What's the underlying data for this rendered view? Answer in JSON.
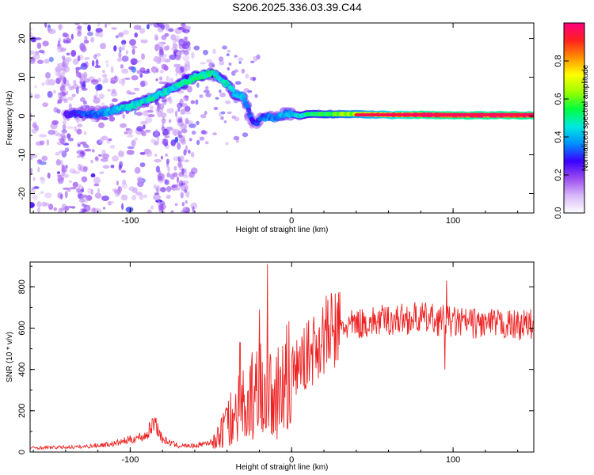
{
  "title": "S206.2025.336.03.39.C44",
  "chart_data": [
    {
      "type": "heatmap",
      "xlabel": "Height of straight line (km)",
      "ylabel": "Frequency (Hz)",
      "xlim": [
        -162,
        150
      ],
      "ylim": [
        -25,
        24
      ],
      "x_ticks": [
        -100,
        0,
        100
      ],
      "y_ticks": [
        -20,
        -10,
        0,
        10,
        20
      ],
      "colorbar": {
        "label": "Normalized spectral amplitude",
        "range": [
          0.0,
          1.0
        ],
        "ticks": [
          0.0,
          0.2,
          0.4,
          0.6,
          0.8
        ],
        "tick_labels": [
          "0.0",
          "0.2",
          "0.4",
          "0.6",
          "0.8"
        ],
        "colors": [
          "#ffffff",
          "#d8b8f8",
          "#9a4cf0",
          "#3a00ff",
          "#0090ff",
          "#00e8e0",
          "#00ff40",
          "#9cff00",
          "#ffff00",
          "#ff9000",
          "#ff2020",
          "#ff0080"
        ]
      },
      "ridge": {
        "x": [
          -140,
          -130,
          -120,
          -110,
          -100,
          -90,
          -80,
          -70,
          -60,
          -50,
          -45,
          -40,
          -35,
          -30,
          -27,
          -25,
          -22,
          -20,
          -15,
          -10,
          -5,
          0,
          5,
          10,
          20,
          40,
          60,
          80,
          100,
          120,
          150
        ],
        "y": [
          0.5,
          0.5,
          0.5,
          1.5,
          2.5,
          4,
          6,
          8,
          10,
          11,
          10,
          8,
          5.5,
          5,
          2,
          -1,
          -2,
          -1,
          0,
          -0.5,
          0.5,
          0.5,
          0,
          0.5,
          0.5,
          0.5,
          0.3,
          0.3,
          0.2,
          0.2,
          0.2
        ],
        "amplitude": [
          0.25,
          0.3,
          0.35,
          0.4,
          0.45,
          0.45,
          0.45,
          0.45,
          0.5,
          0.5,
          0.45,
          0.45,
          0.45,
          0.4,
          0.35,
          0.3,
          0.3,
          0.3,
          0.35,
          0.35,
          0.4,
          0.4,
          0.45,
          0.5,
          0.55,
          0.65,
          0.8,
          0.9,
          0.9,
          0.9,
          0.9
        ]
      }
    },
    {
      "type": "line",
      "xlabel": "Height of straight line (km)",
      "ylabel": "SNR (10 * v/v)",
      "xlim": [
        -162,
        150
      ],
      "ylim": [
        0,
        920
      ],
      "x_ticks": [
        -100,
        0,
        100
      ],
      "y_ticks": [
        0,
        200,
        400,
        600,
        800
      ],
      "color": "#ee2222",
      "envelope": {
        "x": [
          -162,
          -130,
          -110,
          -95,
          -90,
          -85,
          -80,
          -70,
          -60,
          -50,
          -45,
          -40,
          -35,
          -30,
          -25,
          -20,
          -15,
          -10,
          0,
          10,
          20,
          30,
          40,
          60,
          80,
          100,
          120,
          140,
          150
        ],
        "y": [
          20,
          25,
          40,
          70,
          80,
          150,
          60,
          30,
          30,
          50,
          80,
          140,
          220,
          250,
          280,
          320,
          350,
          300,
          380,
          470,
          560,
          600,
          620,
          640,
          650,
          630,
          620,
          615,
          620
        ]
      },
      "peaks": [
        {
          "x": -84,
          "y": 165
        },
        {
          "x": -32,
          "y": 530
        },
        {
          "x": -20,
          "y": 690
        },
        {
          "x": -15,
          "y": 910
        },
        {
          "x": 96,
          "y": 830
        },
        {
          "x": 95,
          "y": 400
        }
      ]
    }
  ]
}
